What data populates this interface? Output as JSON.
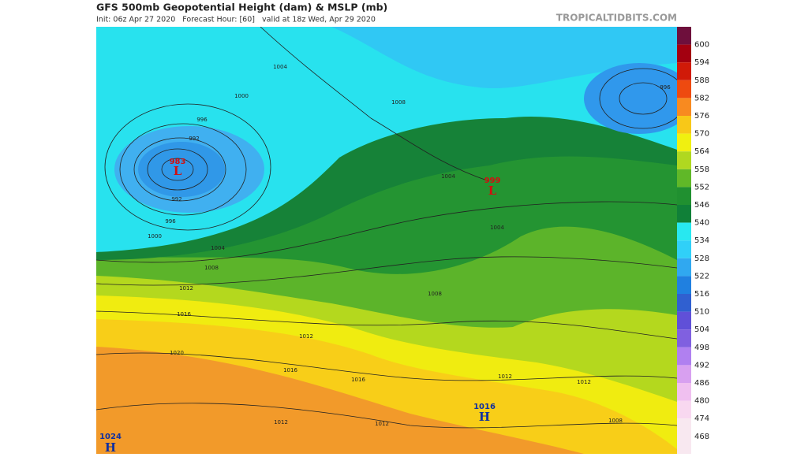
{
  "header": {
    "title": "GFS 500mb Geopotential Height (dam) & MSLP (mb)",
    "subtitle": "Init: 06z Apr 27 2020   Forecast Hour: [60]   valid at 18z Wed, Apr 29 2020",
    "source": "TROPICALTIDBITS.COM"
  },
  "colorbar": {
    "levels": [
      {
        "label": 600,
        "color": "#6e0f3c"
      },
      {
        "label": 594,
        "color": "#a30010"
      },
      {
        "label": 588,
        "color": "#d01a08"
      },
      {
        "label": 582,
        "color": "#ee4a10"
      },
      {
        "label": 576,
        "color": "#f88a20"
      },
      {
        "label": 570,
        "color": "#f8c818"
      },
      {
        "label": 564,
        "color": "#f0f010"
      },
      {
        "label": 558,
        "color": "#b0d820"
      },
      {
        "label": 552,
        "color": "#60b828"
      },
      {
        "label": 546,
        "color": "#209030"
      },
      {
        "label": 540,
        "color": "#108038"
      },
      {
        "label": 534,
        "color": "#28e8f0"
      },
      {
        "label": 528,
        "color": "#30d0f8"
      },
      {
        "label": 522,
        "color": "#30a8f0"
      },
      {
        "label": 516,
        "color": "#2080e0"
      },
      {
        "label": 510,
        "color": "#3060d0"
      },
      {
        "label": 504,
        "color": "#6050d8"
      },
      {
        "label": 498,
        "color": "#8060e0"
      },
      {
        "label": 492,
        "color": "#b080f0"
      },
      {
        "label": 486,
        "color": "#d8a0f0"
      },
      {
        "label": 480,
        "color": "#f0c0f0"
      },
      {
        "label": 474,
        "color": "#f8d8f0"
      },
      {
        "label": 468,
        "color": "#f8e8f0"
      }
    ]
  },
  "map": {
    "labels": [
      {
        "text": "1004",
        "color": "#222222"
      },
      {
        "text": "1000",
        "color": "#222222"
      },
      {
        "text": "996",
        "color": "#222222"
      },
      {
        "text": "992",
        "color": "#222222"
      },
      {
        "text": "983",
        "color": "#d01010"
      },
      {
        "text": "L",
        "color": "#d01010"
      },
      {
        "text": "992",
        "color": "#222222"
      },
      {
        "text": "996",
        "color": "#222222"
      },
      {
        "text": "1000",
        "color": "#222222"
      },
      {
        "text": "1004",
        "color": "#222222"
      },
      {
        "text": "1008",
        "color": "#222222"
      },
      {
        "text": "1012",
        "color": "#222222"
      },
      {
        "text": "1016",
        "color": "#222222"
      },
      {
        "text": "1020",
        "color": "#222222"
      },
      {
        "text": "1016",
        "color": "#222222"
      },
      {
        "text": "1012",
        "color": "#222222"
      },
      {
        "text": "1004",
        "color": "#222222"
      },
      {
        "text": "999",
        "color": "#d01010"
      },
      {
        "text": "L",
        "color": "#d01010"
      },
      {
        "text": "1004",
        "color": "#222222"
      },
      {
        "text": "1008",
        "color": "#222222"
      },
      {
        "text": "1008",
        "color": "#222222"
      },
      {
        "text": "1016",
        "color": "#222222"
      },
      {
        "text": "1012",
        "color": "#222222"
      },
      {
        "text": "1012",
        "color": "#222222"
      },
      {
        "text": "1012",
        "color": "#222222"
      },
      {
        "text": "1016",
        "color": "#1030a0"
      },
      {
        "text": "H",
        "color": "#1030a0"
      },
      {
        "text": "1012",
        "color": "#222222"
      },
      {
        "text": "1008",
        "color": "#222222"
      },
      {
        "text": "996",
        "color": "#222222"
      },
      {
        "text": "1024",
        "color": "#1030a0"
      },
      {
        "text": "H",
        "color": "#1030a0"
      }
    ]
  }
}
